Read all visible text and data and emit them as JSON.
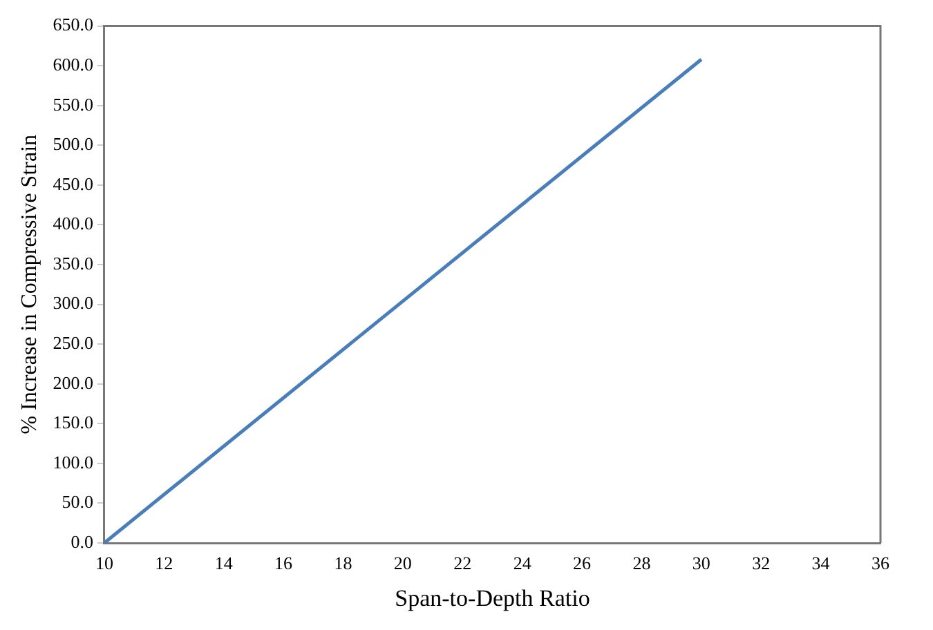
{
  "chart_data": {
    "type": "line",
    "xlabel": "Span-to-Depth Ratio",
    "ylabel": "% Increase in Compressive Strain",
    "x": [
      10,
      30
    ],
    "series": [
      {
        "color": "#4a7ebb",
        "values": [
          0,
          608
        ]
      }
    ],
    "xlim": [
      10,
      36
    ],
    "xticks": [
      10,
      12,
      14,
      16,
      18,
      20,
      22,
      24,
      26,
      28,
      30,
      32,
      34,
      36
    ],
    "ylim": [
      0,
      650
    ],
    "yticks": [
      {
        "value": 0,
        "label": "0.0"
      },
      {
        "value": 50,
        "label": "50.0"
      },
      {
        "value": 100,
        "label": "100.0"
      },
      {
        "value": 150,
        "label": "150.0"
      },
      {
        "value": 200,
        "label": "200.0"
      },
      {
        "value": 250,
        "label": "250.0"
      },
      {
        "value": 300,
        "label": "300.0"
      },
      {
        "value": 350,
        "label": "350.0"
      },
      {
        "value": 400,
        "label": "400.0"
      },
      {
        "value": 450,
        "label": "450.0"
      },
      {
        "value": 500,
        "label": "500.0"
      },
      {
        "value": 550,
        "label": "550.0"
      },
      {
        "value": 600,
        "label": "600.0"
      },
      {
        "value": 650,
        "label": "650.0"
      }
    ],
    "grid": false,
    "legend": false,
    "marker": "none",
    "line_style": "solid"
  }
}
